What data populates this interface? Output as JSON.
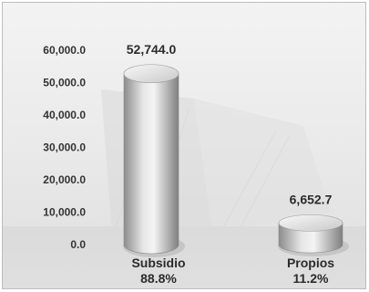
{
  "chart_data": {
    "type": "bar",
    "title": "",
    "xlabel": "",
    "ylabel": "",
    "categories": [
      "Subsidio",
      "Propios"
    ],
    "values": [
      52744.0,
      6652.7
    ],
    "value_labels": [
      "52,744.0",
      "6,652.7"
    ],
    "percent_labels": [
      "88.8%",
      "11.2%"
    ],
    "ylim": [
      0,
      60000
    ],
    "yticks": [
      0,
      10000,
      20000,
      30000,
      40000,
      50000,
      60000
    ],
    "ytick_labels": [
      "0.0",
      "10,000.0",
      "20,000.0",
      "30,000.0",
      "40,000.0",
      "50,000.0",
      "60,000.0"
    ],
    "grid": false,
    "legend": "none",
    "bar_style": "3d-cylinder",
    "colors": {
      "bar_light": "#f2f2f2",
      "bar_mid": "#c8c8c8",
      "bar_dark": "#8c8c8c",
      "text": "#333333"
    }
  }
}
